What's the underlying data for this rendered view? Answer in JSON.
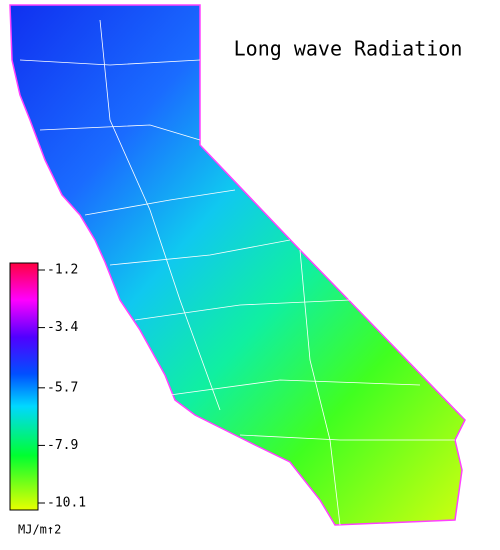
{
  "title": "Long wave Radiation",
  "colorbar": {
    "ticks": [
      -1.2,
      -3.4,
      -5.7,
      -7.9,
      -10.1
    ],
    "unit": "MJ/m↑2"
  }
}
